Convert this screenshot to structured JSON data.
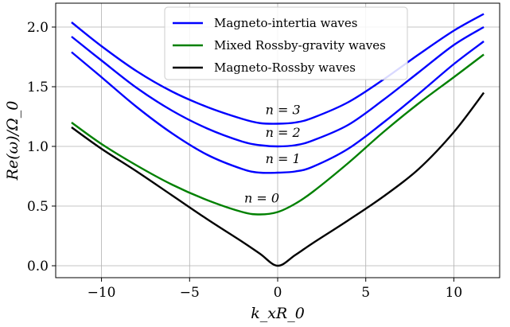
{
  "chart_data": {
    "type": "line",
    "xlabel": "k_xR_0",
    "ylabel": "Re(ω)/Ω_0",
    "xlim": [
      -12.6,
      12.6
    ],
    "ylim": [
      -0.1,
      2.2
    ],
    "x_ticks": [
      -10,
      -5,
      0,
      5,
      10
    ],
    "y_ticks": [
      0.0,
      0.5,
      1.0,
      1.5,
      2.0
    ],
    "x_tick_labels": [
      "−10",
      "−5",
      "0",
      "5",
      "10"
    ],
    "y_tick_labels": [
      "0.0",
      "0.5",
      "1.0",
      "1.5",
      "2.0"
    ],
    "grid": true,
    "legend_position": "top-center",
    "legend": [
      {
        "label": "Magneto-intertia waves",
        "color": "#0000ff"
      },
      {
        "label": "Mixed Rossby-gravity waves",
        "color": "#008000"
      },
      {
        "label": "Magneto-Rossby waves",
        "color": "#000000"
      }
    ],
    "series": [
      {
        "color": "#0000ff",
        "x": [
          -11.7,
          -10,
          -8,
          -6,
          -4,
          -2,
          -1,
          0,
          1,
          2,
          4,
          6,
          8,
          10,
          11.7
        ],
        "y": [
          2.04,
          1.84,
          1.63,
          1.46,
          1.33,
          1.23,
          1.195,
          1.19,
          1.2,
          1.24,
          1.37,
          1.56,
          1.77,
          1.97,
          2.11
        ]
      },
      {
        "color": "#0000ff",
        "x": [
          -11.7,
          -10,
          -8,
          -6,
          -4,
          -2,
          -1,
          0,
          1,
          2,
          4,
          6,
          8,
          10,
          11.7
        ],
        "y": [
          1.92,
          1.72,
          1.49,
          1.3,
          1.15,
          1.04,
          1.01,
          1.0,
          1.01,
          1.05,
          1.18,
          1.39,
          1.62,
          1.85,
          2.0
        ]
      },
      {
        "color": "#0000ff",
        "x": [
          -11.7,
          -10,
          -8,
          -6,
          -4,
          -2,
          -1,
          0,
          1,
          2,
          4,
          6,
          8,
          10,
          11.7
        ],
        "y": [
          1.79,
          1.58,
          1.33,
          1.11,
          0.93,
          0.81,
          0.78,
          0.78,
          0.79,
          0.83,
          0.98,
          1.2,
          1.44,
          1.69,
          1.88
        ]
      },
      {
        "color": "#008000",
        "x": [
          -11.7,
          -10,
          -8,
          -6,
          -4,
          -2,
          -1,
          0,
          1,
          2,
          4,
          6,
          8,
          10,
          11.7
        ],
        "y": [
          1.2,
          1.02,
          0.84,
          0.68,
          0.55,
          0.45,
          0.43,
          0.45,
          0.52,
          0.62,
          0.86,
          1.12,
          1.36,
          1.58,
          1.77
        ]
      },
      {
        "color": "#000000",
        "x": [
          -11.7,
          -10,
          -8,
          -6,
          -4,
          -2,
          -1,
          0,
          1,
          2,
          4,
          6,
          8,
          10,
          11.7
        ],
        "y": [
          1.16,
          0.98,
          0.79,
          0.59,
          0.39,
          0.2,
          0.1,
          0.0,
          0.09,
          0.19,
          0.38,
          0.58,
          0.81,
          1.12,
          1.45
        ]
      }
    ],
    "annotations": [
      {
        "text": "n = 3",
        "x": 0.3,
        "y": 1.27
      },
      {
        "text": "n = 2",
        "x": 0.3,
        "y": 1.08
      },
      {
        "text": "n = 1",
        "x": 0.3,
        "y": 0.86
      },
      {
        "text": "n = 0",
        "x": -0.9,
        "y": 0.53
      }
    ]
  }
}
